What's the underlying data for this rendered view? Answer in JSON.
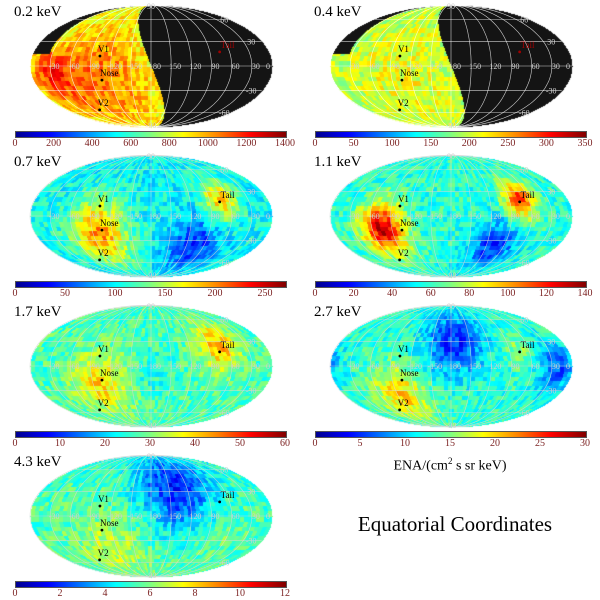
{
  "chart_data": {
    "type": "heatmap",
    "projection": "mollweide",
    "colormap": "jet",
    "grid": true,
    "longitude_labels": [
      "-30",
      "-60",
      "-90",
      "-120",
      "-150",
      "180",
      "150",
      "120",
      "90",
      "60",
      "30",
      "0"
    ],
    "latitude_labels": [
      "90",
      "60",
      "30",
      "-30",
      "-60",
      "-90"
    ],
    "markers": [
      {
        "label": "V1",
        "lon": 257,
        "lat": 12
      },
      {
        "label": "Nose",
        "lon": 255,
        "lat": -17
      },
      {
        "label": "V2",
        "lon": 290,
        "lat": -56
      },
      {
        "label": "Tail",
        "lon": 75,
        "lat": 17
      }
    ],
    "maps": [
      {
        "energy": "0.2 keV",
        "range": [
          0,
          1400
        ],
        "ticks": [
          "0",
          "200",
          "400",
          "600",
          "800",
          "1000",
          "1200",
          "1400"
        ],
        "partial_coverage": true
      },
      {
        "energy": "0.4 keV",
        "range": [
          0,
          350
        ],
        "ticks": [
          "0",
          "50",
          "100",
          "150",
          "200",
          "250",
          "300",
          "350"
        ],
        "partial_coverage": true
      },
      {
        "energy": "0.7 keV",
        "range": [
          0,
          270
        ],
        "ticks": [
          "0",
          "50",
          "100",
          "150",
          "200",
          "250"
        ],
        "partial_coverage": false
      },
      {
        "energy": "1.1 keV",
        "range": [
          0,
          140
        ],
        "ticks": [
          "0",
          "20",
          "40",
          "60",
          "80",
          "100",
          "120",
          "140"
        ],
        "partial_coverage": false
      },
      {
        "energy": "1.7 keV",
        "range": [
          0,
          60
        ],
        "ticks": [
          "0",
          "10",
          "20",
          "30",
          "40",
          "50",
          "60"
        ],
        "partial_coverage": false
      },
      {
        "energy": "2.7 keV",
        "range": [
          0,
          30
        ],
        "ticks": [
          "0",
          "5",
          "10",
          "15",
          "20",
          "25",
          "30"
        ],
        "partial_coverage": false
      },
      {
        "energy": "4.3 keV",
        "range": [
          0,
          12
        ],
        "ticks": [
          "0",
          "2",
          "4",
          "6",
          "8",
          "10",
          "12"
        ],
        "partial_coverage": false
      }
    ],
    "colorbar_label": "ENA/(cm",
    "colorbar_label_sup": "2",
    "colorbar_label_rest": " s sr keV)",
    "title": "Equatorial Coordinates"
  }
}
